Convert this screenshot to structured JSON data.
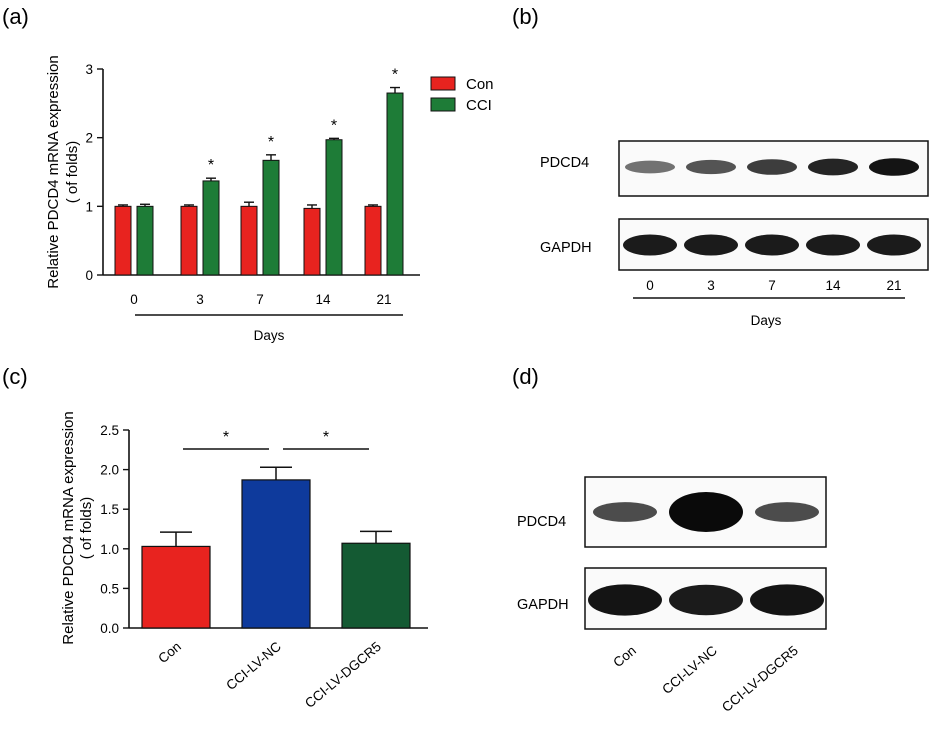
{
  "panels": {
    "a": "(a)",
    "b": "(b)",
    "c": "(c)",
    "d": "(d)"
  },
  "chart_data": [
    {
      "panel": "(a)",
      "type": "bar",
      "ylabel_line1": "Relative PDCD4 mRNA expression",
      "ylabel_line2": "( of folds)",
      "xlabel": "Days",
      "ylim": [
        0,
        3
      ],
      "yticks": [
        "0",
        "1",
        "2",
        "3"
      ],
      "categories": [
        "0",
        "3",
        "7",
        "14",
        "21"
      ],
      "legend_position": "top-right",
      "series": [
        {
          "name": "Con",
          "color": "#e8231f",
          "values": [
            1.0,
            1.0,
            1.0,
            0.97,
            1.0
          ],
          "errors": [
            0.02,
            0.02,
            0.06,
            0.05,
            0.02
          ]
        },
        {
          "name": "CCI",
          "color": "#1e7c37",
          "values": [
            1.0,
            1.37,
            1.67,
            1.97,
            2.65
          ],
          "errors": [
            0.03,
            0.04,
            0.08,
            0.02,
            0.08
          ]
        }
      ],
      "significance": [
        "",
        "*",
        "*",
        "*",
        "*"
      ]
    },
    {
      "panel": "(c)",
      "type": "bar",
      "ylabel_line1": "Relative PDCD4 mRNA expression",
      "ylabel_line2": "( of folds)",
      "ylim": [
        0,
        2.5
      ],
      "yticks": [
        "0.0",
        "0.5",
        "1.0",
        "1.5",
        "2.0",
        "2.5"
      ],
      "categories": [
        "Con",
        "CCI-LV-NC",
        "CCI-LV-DGCR5"
      ],
      "colors": [
        "#e8231f",
        "#0e3a9c",
        "#145a33"
      ],
      "values": [
        1.03,
        1.87,
        1.07
      ],
      "errors": [
        0.18,
        0.16,
        0.15
      ],
      "comparisons": [
        {
          "pair": [
            0,
            1
          ],
          "mark": "*"
        },
        {
          "pair": [
            1,
            2
          ],
          "mark": "*"
        }
      ]
    }
  ],
  "blot_b": {
    "rows": [
      "PDCD4",
      "GAPDH"
    ],
    "lanes": [
      "0",
      "3",
      "7",
      "14",
      "21"
    ],
    "xlabel": "Days",
    "pdcd4_intensity": [
      0.35,
      0.55,
      0.7,
      0.85,
      0.95
    ],
    "gapdh_intensity": [
      0.9,
      0.9,
      0.9,
      0.9,
      0.9
    ]
  },
  "blot_d": {
    "rows": [
      "PDCD4",
      "GAPDH"
    ],
    "lanes": [
      "Con",
      "CCI-LV-NC",
      "CCI-LV-DGCR5"
    ],
    "pdcd4_intensity": [
      0.6,
      1.0,
      0.6
    ],
    "gapdh_intensity": [
      0.95,
      0.9,
      0.95
    ]
  }
}
